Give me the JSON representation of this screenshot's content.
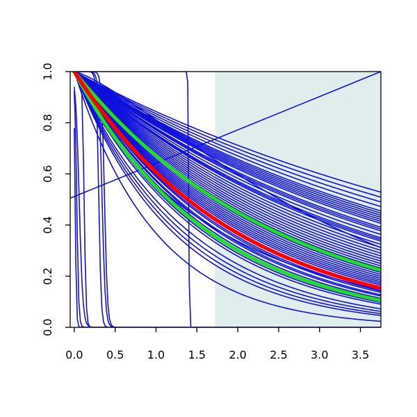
{
  "chart_data": {
    "type": "line",
    "title": "",
    "xlabel": "",
    "ylabel": "",
    "xlim": [
      -0.05,
      3.75
    ],
    "ylim": [
      0.0,
      1.0
    ],
    "x_ticks": [
      "0.0",
      "0.5",
      "1.0",
      "1.5",
      "2.0",
      "2.5",
      "3.0",
      "3.5"
    ],
    "y_ticks": [
      "0.0",
      "0.2",
      "0.4",
      "0.6",
      "0.8",
      "1.0"
    ],
    "grid": false,
    "legend": "none",
    "shaded_region": {
      "x_from": 1.72,
      "x_to": 3.75,
      "color": "#e0eded"
    },
    "colors": {
      "curves": "#1010dd",
      "highlight": "#ff0000",
      "band": "#22dd22"
    },
    "highlight_curve": {
      "shape": "exponential",
      "rate": 0.5
    },
    "band_curves": [
      {
        "shape": "exponential",
        "rate": 0.4
      },
      {
        "shape": "exponential",
        "rate": 0.6
      }
    ],
    "exponential_rates": [
      0.17,
      0.18,
      0.19,
      0.2,
      0.21,
      0.215,
      0.22,
      0.225,
      0.23,
      0.235,
      0.24,
      0.25,
      0.255,
      0.26,
      0.27,
      0.28,
      0.285,
      0.29,
      0.3,
      0.31,
      0.32,
      0.33,
      0.34,
      0.35,
      0.36,
      0.37,
      0.38,
      0.39,
      0.41,
      0.42,
      0.43,
      0.44,
      0.45,
      0.46,
      0.47,
      0.48,
      0.52,
      0.53,
      0.55,
      0.56,
      0.58,
      0.62,
      0.64,
      0.7,
      0.74,
      0.78,
      0.82
    ],
    "power_curves": [
      {
        "rate": 0.3,
        "power": 1.3
      },
      {
        "rate": 0.55,
        "power": 0.9
      },
      {
        "rate": 1.0,
        "power": 1.0
      }
    ],
    "step_curves": [
      {
        "center": 0.01,
        "width": 0.008
      },
      {
        "center": 0.03,
        "width": 0.012
      },
      {
        "center": 0.06,
        "width": 0.022
      },
      {
        "center": 0.12,
        "width": 0.012
      },
      {
        "center": 0.3,
        "width": 0.015
      },
      {
        "center": 0.34,
        "width": 0.02
      },
      {
        "center": 0.37,
        "width": 0.018
      },
      {
        "center": 1.4,
        "width": 0.004
      }
    ],
    "linear_curves": [
      {
        "x": [
          -0.05,
          3.75
        ],
        "y": [
          0.505,
          1.0
        ]
      }
    ]
  }
}
